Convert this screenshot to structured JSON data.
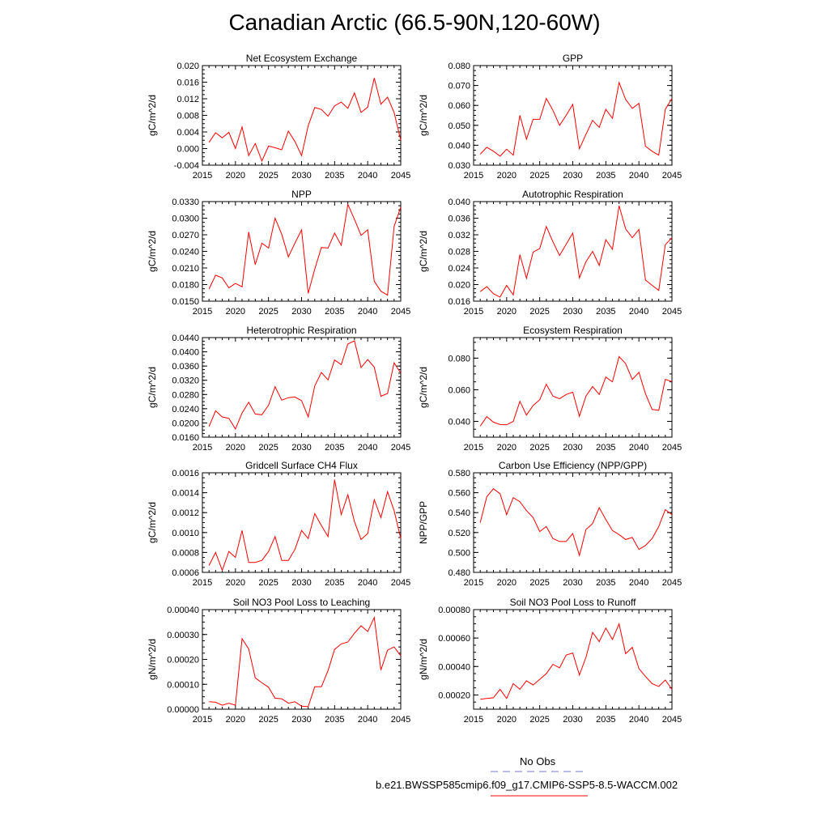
{
  "title": "Canadian Arctic (66.5-90N,120-60W)",
  "colors": {
    "series": "#ff0000",
    "obs": "#7777cc",
    "axis": "#000000"
  },
  "legend": {
    "obs_label": "No Obs",
    "model_label": "b.e21.BWSSP585cmip6.f09_g17.CMIP6-SSP5-8.5-WACCM.002"
  },
  "chart_data": [
    {
      "type": "line",
      "title": "Net Ecosystem Exchange",
      "ylabel": "gC/m^2/d",
      "xlim": [
        2015,
        2045
      ],
      "ylim": [
        -0.004,
        0.02
      ],
      "xticks": [
        "2015",
        "2020",
        "2025",
        "2030",
        "2035",
        "2040",
        "2045"
      ],
      "yticks": [
        "-0.004",
        "0.000",
        "0.004",
        "0.008",
        "0.012",
        "0.016",
        "0.020"
      ],
      "x": [
        2016,
        2017,
        2018,
        2019,
        2020,
        2021,
        2022,
        2023,
        2024,
        2025,
        2026,
        2027,
        2028,
        2029,
        2030,
        2031,
        2032,
        2033,
        2034,
        2035,
        2036,
        2037,
        2038,
        2039,
        2040,
        2041,
        2042,
        2043,
        2044,
        2045
      ],
      "y": [
        0.0015,
        0.0038,
        0.0026,
        0.0039,
        0.0,
        0.0052,
        -0.0017,
        0.0012,
        -0.003,
        0.0006,
        0.0002,
        -0.0003,
        0.0042,
        0.0017,
        -0.0017,
        0.0055,
        0.0099,
        0.0094,
        0.0078,
        0.0103,
        0.0112,
        0.0097,
        0.0134,
        0.0087,
        0.01,
        0.017,
        0.0107,
        0.0124,
        0.0087,
        0.002
      ]
    },
    {
      "type": "line",
      "title": "GPP",
      "ylabel": "gC/m^2/d",
      "xlim": [
        2015,
        2045
      ],
      "ylim": [
        0.03,
        0.08
      ],
      "xticks": [
        "2015",
        "2020",
        "2025",
        "2030",
        "2035",
        "2040",
        "2045"
      ],
      "yticks": [
        "0.030",
        "0.040",
        "0.050",
        "0.060",
        "0.070",
        "0.080"
      ],
      "x": [
        2016,
        2017,
        2018,
        2019,
        2020,
        2021,
        2022,
        2023,
        2024,
        2025,
        2026,
        2027,
        2028,
        2029,
        2030,
        2031,
        2032,
        2033,
        2034,
        2035,
        2036,
        2037,
        2038,
        2039,
        2040,
        2041,
        2042,
        2043,
        2044,
        2045
      ],
      "y": [
        0.0355,
        0.039,
        0.037,
        0.0345,
        0.038,
        0.035,
        0.055,
        0.043,
        0.053,
        0.053,
        0.0635,
        0.0575,
        0.05,
        0.055,
        0.0605,
        0.0382,
        0.0455,
        0.0525,
        0.049,
        0.058,
        0.0535,
        0.0715,
        0.063,
        0.0585,
        0.061,
        0.0395,
        0.037,
        0.035,
        0.058,
        0.0635
      ]
    },
    {
      "type": "line",
      "title": "NPP",
      "ylabel": "gC/m^2/d",
      "xlim": [
        2015,
        2045
      ],
      "ylim": [
        0.015,
        0.033
      ],
      "xticks": [
        "2015",
        "2020",
        "2025",
        "2030",
        "2035",
        "2040",
        "2045"
      ],
      "yticks": [
        "0.0150",
        "0.0180",
        "0.0210",
        "0.0240",
        "0.0270",
        "0.0300",
        "0.0330"
      ],
      "x": [
        2016,
        2017,
        2018,
        2019,
        2020,
        2021,
        2022,
        2023,
        2024,
        2025,
        2026,
        2027,
        2028,
        2029,
        2030,
        2031,
        2032,
        2033,
        2034,
        2035,
        2036,
        2037,
        2038,
        2039,
        2040,
        2041,
        2042,
        2043,
        2044,
        2045
      ],
      "y": [
        0.0172,
        0.0197,
        0.0192,
        0.0174,
        0.0182,
        0.0176,
        0.0275,
        0.0216,
        0.0255,
        0.0246,
        0.03,
        0.0271,
        0.023,
        0.0255,
        0.0279,
        0.0164,
        0.0208,
        0.0247,
        0.0246,
        0.0273,
        0.0251,
        0.0325,
        0.0298,
        0.0269,
        0.0279,
        0.0186,
        0.0168,
        0.0161,
        0.0285,
        0.032
      ]
    },
    {
      "type": "line",
      "title": "Autotrophic Respiration",
      "ylabel": "gC/m^2/d",
      "xlim": [
        2015,
        2045
      ],
      "ylim": [
        0.016,
        0.04
      ],
      "xticks": [
        "2015",
        "2020",
        "2025",
        "2030",
        "2035",
        "2040",
        "2045"
      ],
      "yticks": [
        "0.016",
        "0.020",
        "0.024",
        "0.028",
        "0.032",
        "0.036",
        "0.040"
      ],
      "x": [
        2016,
        2017,
        2018,
        2019,
        2020,
        2021,
        2022,
        2023,
        2024,
        2025,
        2026,
        2027,
        2028,
        2029,
        2030,
        2031,
        2032,
        2033,
        2034,
        2035,
        2036,
        2037,
        2038,
        2039,
        2040,
        2041,
        2042,
        2043,
        2044,
        2045
      ],
      "y": [
        0.0183,
        0.0195,
        0.0178,
        0.017,
        0.0198,
        0.0175,
        0.0272,
        0.0215,
        0.0278,
        0.0287,
        0.034,
        0.0303,
        0.027,
        0.0297,
        0.0324,
        0.0216,
        0.0255,
        0.028,
        0.0246,
        0.0308,
        0.0285,
        0.039,
        0.0334,
        0.0313,
        0.0333,
        0.0211,
        0.0198,
        0.0186,
        0.0296,
        0.0313
      ]
    },
    {
      "type": "line",
      "title": "Heterotrophic Respiration",
      "ylabel": "gC/m^2/d",
      "xlim": [
        2015,
        2045
      ],
      "ylim": [
        0.016,
        0.044
      ],
      "xticks": [
        "2015",
        "2020",
        "2025",
        "2030",
        "2035",
        "2040",
        "2045"
      ],
      "yticks": [
        "0.0160",
        "0.0200",
        "0.0240",
        "0.0280",
        "0.0320",
        "0.0360",
        "0.0400",
        "0.0440"
      ],
      "x": [
        2016,
        2017,
        2018,
        2019,
        2020,
        2021,
        2022,
        2023,
        2024,
        2025,
        2026,
        2027,
        2028,
        2029,
        2030,
        2031,
        2032,
        2033,
        2034,
        2035,
        2036,
        2037,
        2038,
        2039,
        2040,
        2041,
        2042,
        2043,
        2044,
        2045
      ],
      "y": [
        0.019,
        0.0234,
        0.0217,
        0.0213,
        0.0183,
        0.0228,
        0.0258,
        0.0225,
        0.0223,
        0.025,
        0.0302,
        0.0264,
        0.0271,
        0.0273,
        0.0263,
        0.0217,
        0.0304,
        0.0342,
        0.0321,
        0.0377,
        0.0364,
        0.0422,
        0.0431,
        0.0356,
        0.0378,
        0.0357,
        0.0275,
        0.0283,
        0.0369,
        0.034
      ]
    },
    {
      "type": "line",
      "title": "Ecosystem Respiration",
      "ylabel": "gC/m^2/d",
      "xlim": [
        2015,
        2045
      ],
      "ylim": [
        0.03,
        0.093
      ],
      "xticks": [
        "2015",
        "2020",
        "2025",
        "2030",
        "2035",
        "2040",
        "2045"
      ],
      "yticks": [
        "0.040",
        "0.060",
        "0.080"
      ],
      "ytick_values": [
        0.04,
        0.06,
        0.08
      ],
      "x": [
        2016,
        2017,
        2018,
        2019,
        2020,
        2021,
        2022,
        2023,
        2024,
        2025,
        2026,
        2027,
        2028,
        2029,
        2030,
        2031,
        2032,
        2033,
        2034,
        2035,
        2036,
        2037,
        2038,
        2039,
        2040,
        2041,
        2042,
        2043,
        2044,
        2045
      ],
      "y": [
        0.037,
        0.043,
        0.0395,
        0.038,
        0.0378,
        0.04,
        0.0527,
        0.044,
        0.05,
        0.0537,
        0.0635,
        0.056,
        0.0543,
        0.057,
        0.0585,
        0.0432,
        0.056,
        0.062,
        0.057,
        0.068,
        0.065,
        0.081,
        0.0765,
        0.0665,
        0.071,
        0.0575,
        0.0475,
        0.047,
        0.0665,
        0.0652
      ]
    },
    {
      "type": "line",
      "title": "Gridcell Surface CH4 Flux",
      "ylabel": "gC/m^2/d",
      "xlim": [
        2015,
        2045
      ],
      "ylim": [
        0.0006,
        0.0016
      ],
      "xticks": [
        "2015",
        "2020",
        "2025",
        "2030",
        "2035",
        "2040",
        "2045"
      ],
      "yticks": [
        "0.0006",
        "0.0008",
        "0.0010",
        "0.0012",
        "0.0014",
        "0.0016"
      ],
      "x": [
        2016,
        2017,
        2018,
        2019,
        2020,
        2021,
        2022,
        2023,
        2024,
        2025,
        2026,
        2027,
        2028,
        2029,
        2030,
        2031,
        2032,
        2033,
        2034,
        2035,
        2036,
        2037,
        2038,
        2039,
        2040,
        2041,
        2042,
        2043,
        2044,
        2045
      ],
      "y": [
        0.00067,
        0.0008,
        0.00062,
        0.00081,
        0.00075,
        0.00102,
        0.0007,
        0.0007,
        0.00072,
        0.00081,
        0.00096,
        0.00072,
        0.00072,
        0.00083,
        0.00102,
        0.00094,
        0.00119,
        0.00107,
        0.00096,
        0.00153,
        0.00118,
        0.00138,
        0.00111,
        0.00093,
        0.00099,
        0.00133,
        0.00115,
        0.00141,
        0.00122,
        0.00094
      ]
    },
    {
      "type": "line",
      "title": "Carbon Use Efficiency (NPP/GPP)",
      "ylabel": "NPP/GPP",
      "xlim": [
        2015,
        2045
      ],
      "ylim": [
        0.48,
        0.58
      ],
      "xticks": [
        "2015",
        "2020",
        "2025",
        "2030",
        "2035",
        "2040",
        "2045"
      ],
      "yticks": [
        "0.480",
        "0.500",
        "0.520",
        "0.540",
        "0.560",
        "0.580"
      ],
      "x": [
        2016,
        2017,
        2018,
        2019,
        2020,
        2021,
        2022,
        2023,
        2024,
        2025,
        2026,
        2027,
        2028,
        2029,
        2030,
        2031,
        2032,
        2033,
        2034,
        2035,
        2036,
        2037,
        2038,
        2039,
        2040,
        2041,
        2042,
        2043,
        2044,
        2045
      ],
      "y": [
        0.53,
        0.556,
        0.564,
        0.559,
        0.538,
        0.555,
        0.551,
        0.542,
        0.535,
        0.521,
        0.526,
        0.514,
        0.511,
        0.511,
        0.519,
        0.497,
        0.523,
        0.529,
        0.545,
        0.533,
        0.522,
        0.518,
        0.513,
        0.515,
        0.503,
        0.507,
        0.514,
        0.526,
        0.543,
        0.538
      ]
    },
    {
      "type": "line",
      "title": "Soil NO3 Pool Loss to Leaching",
      "ylabel": "gN/m^2/d",
      "xlim": [
        2015,
        2045
      ],
      "ylim": [
        0.0,
        0.0004
      ],
      "xticks": [
        "2015",
        "2020",
        "2025",
        "2030",
        "2035",
        "2040",
        "2045"
      ],
      "yticks": [
        "0.00000",
        "0.00010",
        "0.00020",
        "0.00030",
        "0.00040"
      ],
      "x": [
        2016,
        2017,
        2018,
        2019,
        2020,
        2021,
        2022,
        2023,
        2024,
        2025,
        2026,
        2027,
        2028,
        2029,
        2030,
        2031,
        2032,
        2033,
        2034,
        2035,
        2036,
        2037,
        2038,
        2039,
        2040,
        2041,
        2042,
        2043,
        2044,
        2045
      ],
      "y": [
        3e-05,
        2.8e-05,
        1.6e-05,
        2.4e-05,
        1.6e-05,
        0.000283,
        0.000242,
        0.000126,
        0.000106,
        8.8e-05,
        4.4e-05,
        4.2e-05,
        2.4e-05,
        3e-05,
        1.2e-05,
        1e-05,
        9e-05,
        9e-05,
        0.000155,
        0.00024,
        0.000262,
        0.00027,
        0.000305,
        0.000335,
        0.000312,
        0.000368,
        0.000157,
        0.000237,
        0.00025,
        0.000214
      ]
    },
    {
      "type": "line",
      "title": "Soil NO3 Pool Loss to Runoff",
      "ylabel": "gN/m^2/d",
      "xlim": [
        2015,
        2045
      ],
      "ylim": [
        0.0001,
        0.0008
      ],
      "xticks": [
        "2015",
        "2020",
        "2025",
        "2030",
        "2035",
        "2040",
        "2045"
      ],
      "yticks": [
        "0.00020",
        "0.00040",
        "0.00060",
        "0.00080"
      ],
      "ytick_values": [
        0.0002,
        0.0004,
        0.0006,
        0.0008
      ],
      "x": [
        2016,
        2017,
        2018,
        2019,
        2020,
        2021,
        2022,
        2023,
        2024,
        2025,
        2026,
        2027,
        2028,
        2029,
        2030,
        2031,
        2032,
        2033,
        2034,
        2035,
        2036,
        2037,
        2038,
        2039,
        2040,
        2041,
        2042,
        2043,
        2044,
        2045
      ],
      "y": [
        0.00017,
        0.000175,
        0.00018,
        0.00024,
        0.000175,
        0.00028,
        0.00024,
        0.0003,
        0.00027,
        0.00031,
        0.00035,
        0.000415,
        0.00039,
        0.00048,
        0.000495,
        0.00034,
        0.000465,
        0.00064,
        0.000575,
        0.00067,
        0.00059,
        0.0007,
        0.00049,
        0.000535,
        0.000385,
        0.00033,
        0.00028,
        0.00026,
        0.000305,
        0.00024
      ]
    }
  ]
}
